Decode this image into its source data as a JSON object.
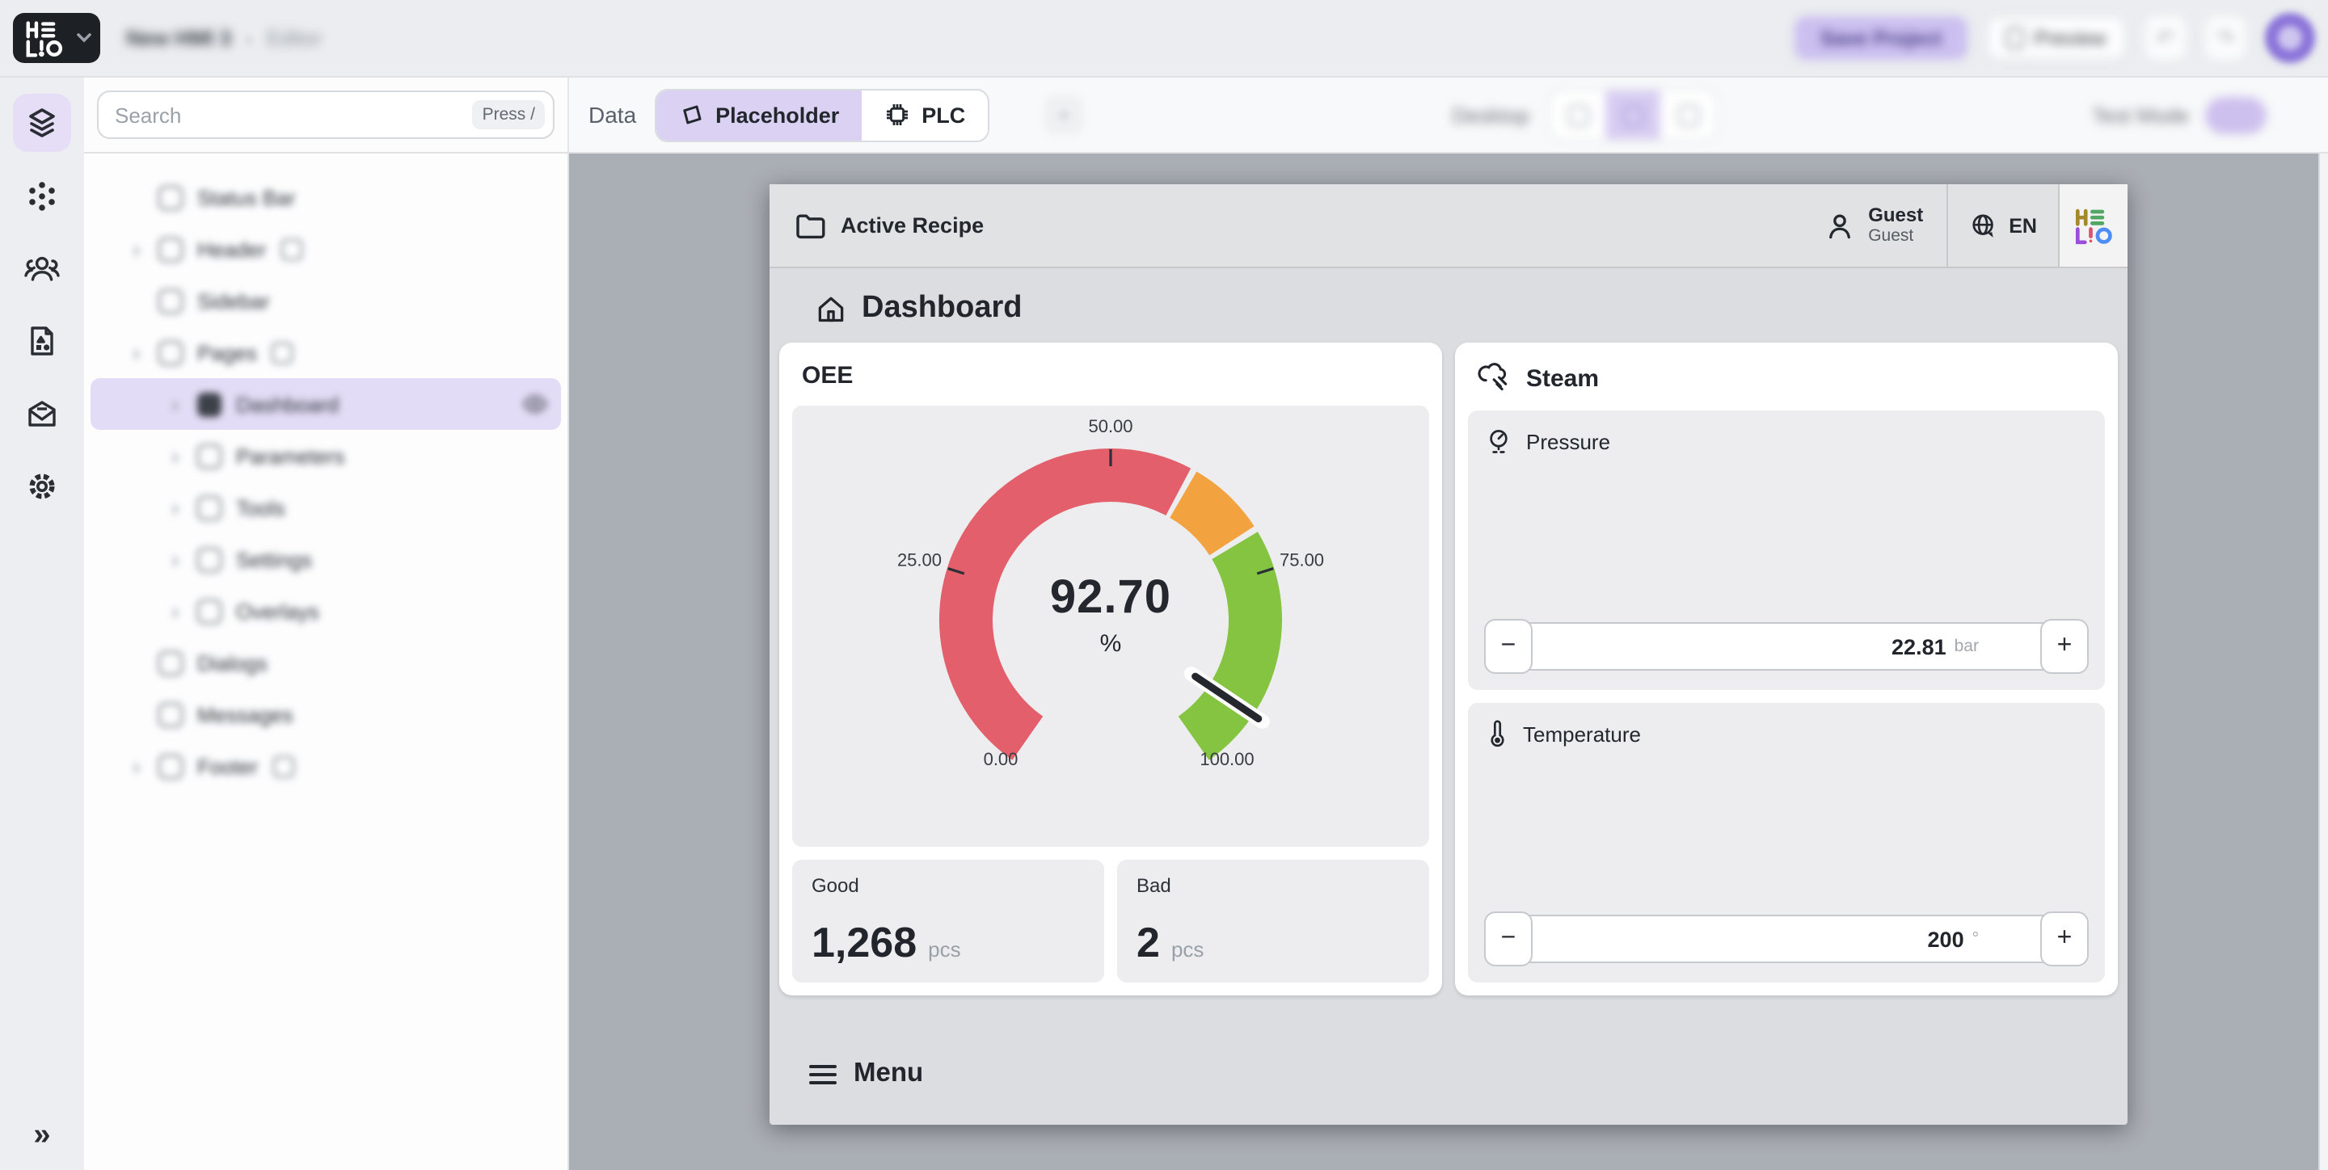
{
  "topbar": {
    "project_name": "New HMI 3",
    "editor_label": "Editor",
    "save_label": "Save Project",
    "preview_label": "Preview",
    "logo": "HELIO"
  },
  "search": {
    "placeholder": "Search",
    "shortcut": "Press /"
  },
  "toolbar": {
    "data_label": "Data",
    "tabs": [
      {
        "label": "Placeholder",
        "icon": "placeholder-icon",
        "active": true
      },
      {
        "label": "PLC",
        "icon": "chip-icon",
        "active": false
      }
    ],
    "add_tab_label": "+",
    "device_label": "Desktop",
    "test_mode_label": "Test Mode"
  },
  "sidebar_rail": {
    "items": [
      {
        "icon": "layers-icon",
        "active": true
      },
      {
        "icon": "components-icon",
        "active": false
      },
      {
        "icon": "users-icon",
        "active": false
      },
      {
        "icon": "assets-icon",
        "active": false
      },
      {
        "icon": "mail-icon",
        "active": false
      },
      {
        "icon": "settings-icon",
        "active": false
      }
    ],
    "collapse_icon": "chevrons-right-icon",
    "collapse_glyph": "»"
  },
  "sidebar_tree": {
    "items": [
      {
        "label": "Status Bar",
        "depth": 1,
        "chevron": false,
        "badge": false,
        "selected": false,
        "eye": false
      },
      {
        "label": "Header",
        "depth": 1,
        "chevron": true,
        "badge": true,
        "selected": false,
        "eye": false
      },
      {
        "label": "Sidebar",
        "depth": 1,
        "chevron": false,
        "badge": false,
        "selected": false,
        "eye": false
      },
      {
        "label": "Pages",
        "depth": 1,
        "chevron": true,
        "badge": true,
        "selected": false,
        "eye": false
      },
      {
        "label": "Dashboard",
        "depth": 2,
        "chevron": true,
        "badge": false,
        "selected": true,
        "eye": true
      },
      {
        "label": "Parameters",
        "depth": 2,
        "chevron": true,
        "badge": false,
        "selected": false,
        "eye": false
      },
      {
        "label": "Tools",
        "depth": 2,
        "chevron": true,
        "badge": false,
        "selected": false,
        "eye": false
      },
      {
        "label": "Settings",
        "depth": 2,
        "chevron": true,
        "badge": false,
        "selected": false,
        "eye": false
      },
      {
        "label": "Overlays",
        "depth": 2,
        "chevron": true,
        "badge": false,
        "selected": false,
        "eye": false
      },
      {
        "label": "Dialogs",
        "depth": 1,
        "chevron": false,
        "badge": false,
        "selected": false,
        "eye": false
      },
      {
        "label": "Messages",
        "depth": 1,
        "chevron": false,
        "badge": false,
        "selected": false,
        "eye": false
      },
      {
        "label": "Footer",
        "depth": 1,
        "chevron": true,
        "badge": true,
        "selected": false,
        "eye": false
      }
    ]
  },
  "recipe_bar": {
    "label": "Active Recipe",
    "user_name": "Guest",
    "user_role": "Guest",
    "language": "EN",
    "logo": "HELIO"
  },
  "page": {
    "title": "Dashboard",
    "menu_label": "Menu"
  },
  "steam": {
    "title": "Steam",
    "sections": [
      {
        "label": "Pressure",
        "icon": "gauge-icon",
        "value": "22.81",
        "unit": "bar",
        "minus": "−",
        "plus": "+"
      },
      {
        "label": "Temperature",
        "icon": "thermometer-icon",
        "value": "200",
        "unit": "°",
        "minus": "−",
        "plus": "+"
      }
    ]
  },
  "chart_data": {
    "type": "gauge",
    "title": "OEE",
    "value": 92.7,
    "value_display": "92.70",
    "unit": "%",
    "min": 0,
    "max": 100,
    "start_angle": -145,
    "end_angle": 145,
    "bands": [
      {
        "from": 0,
        "to": 60,
        "color": "#e25f6b"
      },
      {
        "from": 60,
        "to": 70,
        "color": "#f2a340"
      },
      {
        "from": 70,
        "to": 100,
        "color": "#85c441"
      }
    ],
    "ticks": [
      25,
      50,
      75
    ],
    "tick_labels": [
      {
        "value": 0,
        "label": "0.00"
      },
      {
        "value": 25,
        "label": "25.00"
      },
      {
        "value": 50,
        "label": "50.00"
      },
      {
        "value": 75,
        "label": "75.00"
      },
      {
        "value": 100,
        "label": "100.00"
      }
    ],
    "needle_color": "#24282e",
    "kpis": [
      {
        "label": "Good",
        "value": "1,268",
        "unit": "pcs"
      },
      {
        "label": "Bad",
        "value": "2",
        "unit": "pcs"
      }
    ]
  },
  "colors": {
    "accent_purple": "#dbd2f3",
    "canvas_bg": "#aaaeb5",
    "frame_bg": "#dcdde0",
    "gauge_red": "#e25f6b",
    "gauge_orange": "#f2a340",
    "gauge_green": "#85c441"
  }
}
